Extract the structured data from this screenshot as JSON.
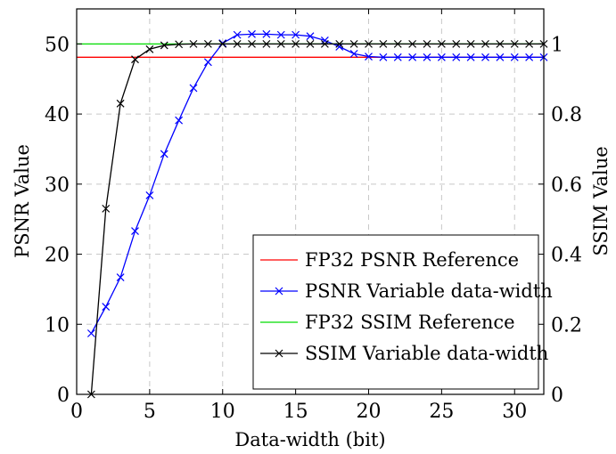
{
  "chart_data": {
    "type": "line",
    "title": "",
    "xlabel": "Data-width (bit)",
    "ylabel_left": "PSNR Value",
    "ylabel_right": "SSIM Value",
    "xlim": [
      0,
      32
    ],
    "ylim_left": [
      0,
      55
    ],
    "ylim_right": [
      0,
      1.1
    ],
    "grid": true,
    "grid_style": "dashed",
    "legend_position": "bottom-right",
    "x_ticks": [
      0,
      5,
      10,
      15,
      20,
      25,
      30
    ],
    "y_left_ticks": [
      0,
      10,
      20,
      30,
      40,
      50
    ],
    "y_right_ticks": [
      0,
      0.2,
      0.4,
      0.6,
      0.8,
      1
    ],
    "y_right_tick_labels": [
      "0",
      "0.2",
      "0.4",
      "0.6",
      "0.8",
      "1"
    ],
    "series": [
      {
        "name": "FP32 PSNR Reference",
        "axis": "left",
        "color": "#ff0000",
        "marker": "none",
        "x": [
          0,
          32
        ],
        "y": [
          48.1,
          48.1
        ]
      },
      {
        "name": "PSNR Variable data-width",
        "axis": "left",
        "color": "#0000ff",
        "marker": "x",
        "x": [
          1,
          2,
          3,
          4,
          5,
          6,
          7,
          8,
          9,
          10,
          11,
          12,
          13,
          14,
          15,
          16,
          17,
          18,
          19,
          20,
          21,
          22,
          23,
          24,
          25,
          26,
          27,
          28,
          29,
          30,
          31,
          32
        ],
        "y": [
          8.7,
          12.5,
          16.7,
          23.3,
          28.4,
          34.3,
          39.1,
          43.7,
          47.4,
          50.1,
          51.3,
          51.4,
          51.4,
          51.3,
          51.3,
          51.1,
          50.5,
          49.6,
          48.6,
          48.2,
          48.1,
          48.1,
          48.1,
          48.1,
          48.1,
          48.1,
          48.1,
          48.1,
          48.1,
          48.1,
          48.1,
          48.1
        ]
      },
      {
        "name": "FP32 SSIM Reference",
        "axis": "right",
        "color": "#00dd00",
        "marker": "none",
        "x": [
          0,
          32
        ],
        "y": [
          1.0,
          1.0
        ]
      },
      {
        "name": "SSIM Variable data-width",
        "axis": "right",
        "color": "#000000",
        "marker": "x",
        "x": [
          1,
          2,
          3,
          4,
          5,
          6,
          7,
          8,
          9,
          10,
          11,
          12,
          13,
          14,
          15,
          16,
          17,
          18,
          19,
          20,
          21,
          22,
          23,
          24,
          25,
          26,
          27,
          28,
          29,
          30,
          31,
          32
        ],
        "y": [
          0.0,
          0.53,
          0.83,
          0.956,
          0.985,
          0.996,
          0.999,
          1,
          1,
          1,
          1,
          1,
          1,
          1,
          1,
          1,
          1,
          1,
          1,
          1,
          1,
          1,
          1,
          1,
          1,
          1,
          1,
          1,
          1,
          1,
          1,
          1
        ]
      }
    ]
  }
}
